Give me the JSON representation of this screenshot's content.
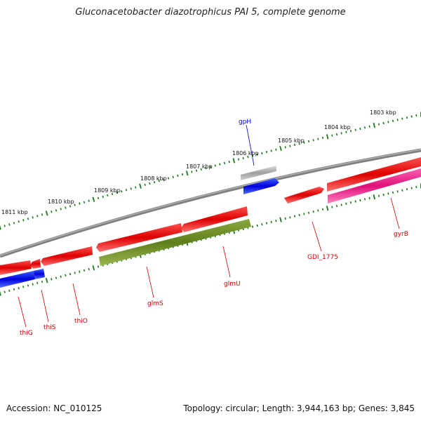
{
  "title": "Gluconacetobacter diazotrophicus PAI 5, complete genome",
  "footer": {
    "accession": "Accession: NC_010125",
    "stats": "Topology: circular; Length: 3,944,163 bp; Genes: 3,845"
  },
  "kbp_labels": [
    "1803 kbp",
    "1804 kbp",
    "1805 kbp",
    "1806 kbp",
    "1807 kbp",
    "1808 kbp",
    "1809 kbp",
    "1810 kbp",
    "1811 kbp"
  ],
  "genes": [
    {
      "name": "thiG",
      "color": "#cc0000"
    },
    {
      "name": "thiS",
      "color": "#cc0000"
    },
    {
      "name": "thiO",
      "color": "#cc0000"
    },
    {
      "name": "glmS",
      "color": "#cc0000"
    },
    {
      "name": "glmU",
      "color": "#cc0000"
    },
    {
      "name": "GDI_1775",
      "color": "#cc0000"
    },
    {
      "name": "gyrB",
      "color": "#cc0000"
    },
    {
      "name": "gpH",
      "color": "#0000cc"
    }
  ],
  "colors": {
    "backbone": "#808080",
    "cds_forward": "#e00000",
    "cds_pink": "#e8147a",
    "cds_olive": "#6b8e23",
    "cds_blue": "#0000ee",
    "cds_gray": "#a9a9a9",
    "ticks": "#1a7a1a"
  }
}
